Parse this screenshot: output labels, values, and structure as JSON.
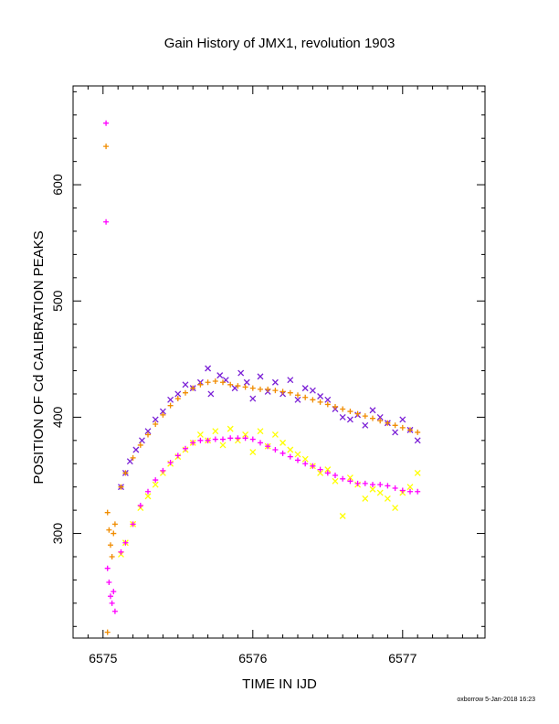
{
  "chart_data": {
    "type": "scatter",
    "title": "Gain History of JMX1, revolution 1903",
    "xlabel": "TIME IN IJD",
    "ylabel": "POSITION OF Cd CALIBRATION PEAKS",
    "xlim": [
      6574.8,
      6577.55
    ],
    "ylim": [
      210,
      685
    ],
    "xticks": [
      6575,
      6576,
      6577
    ],
    "xtick_labels": [
      "6575",
      "6576",
      "6577"
    ],
    "yticks": [
      300,
      400,
      500,
      600
    ],
    "ytick_labels": [
      "300",
      "400",
      "500",
      "600"
    ],
    "grid": false,
    "legend": "none",
    "series": [
      {
        "marker": "x",
        "color": "#7a1fd6",
        "points": [
          [
            6575.12,
            340
          ],
          [
            6575.15,
            352
          ],
          [
            6575.18,
            362
          ],
          [
            6575.22,
            372
          ],
          [
            6575.26,
            380
          ],
          [
            6575.3,
            388
          ],
          [
            6575.35,
            398
          ],
          [
            6575.4,
            405
          ],
          [
            6575.45,
            415
          ],
          [
            6575.5,
            420
          ],
          [
            6575.55,
            428
          ],
          [
            6575.6,
            425
          ],
          [
            6575.65,
            430
          ],
          [
            6575.7,
            442
          ],
          [
            6575.72,
            420
          ],
          [
            6575.78,
            436
          ],
          [
            6575.82,
            432
          ],
          [
            6575.88,
            425
          ],
          [
            6575.92,
            438
          ],
          [
            6575.96,
            430
          ],
          [
            6576.0,
            416
          ],
          [
            6576.05,
            435
          ],
          [
            6576.1,
            422
          ],
          [
            6576.15,
            430
          ],
          [
            6576.2,
            420
          ],
          [
            6576.25,
            432
          ],
          [
            6576.3,
            415
          ],
          [
            6576.35,
            425
          ],
          [
            6576.4,
            423
          ],
          [
            6576.45,
            418
          ],
          [
            6576.5,
            415
          ],
          [
            6576.55,
            407
          ],
          [
            6576.6,
            400
          ],
          [
            6576.65,
            398
          ],
          [
            6576.7,
            402
          ],
          [
            6576.75,
            393
          ],
          [
            6576.8,
            406
          ],
          [
            6576.85,
            400
          ],
          [
            6576.9,
            395
          ],
          [
            6576.95,
            387
          ],
          [
            6577.0,
            398
          ],
          [
            6577.05,
            389
          ],
          [
            6577.1,
            380
          ]
        ]
      },
      {
        "marker": "+",
        "color": "#f08c00",
        "points": [
          [
            6575.02,
            633
          ],
          [
            6575.03,
            318
          ],
          [
            6575.04,
            303
          ],
          [
            6575.05,
            290
          ],
          [
            6575.06,
            280
          ],
          [
            6575.07,
            300
          ],
          [
            6575.08,
            308
          ],
          [
            6575.03,
            215
          ],
          [
            6575.12,
            340
          ],
          [
            6575.15,
            352
          ],
          [
            6575.2,
            365
          ],
          [
            6575.25,
            376
          ],
          [
            6575.3,
            385
          ],
          [
            6575.35,
            394
          ],
          [
            6575.4,
            402
          ],
          [
            6575.45,
            410
          ],
          [
            6575.5,
            416
          ],
          [
            6575.55,
            421
          ],
          [
            6575.6,
            425
          ],
          [
            6575.65,
            428
          ],
          [
            6575.7,
            430
          ],
          [
            6575.75,
            431
          ],
          [
            6575.8,
            430
          ],
          [
            6575.85,
            428
          ],
          [
            6575.9,
            427
          ],
          [
            6575.95,
            426
          ],
          [
            6576.0,
            425
          ],
          [
            6576.05,
            424
          ],
          [
            6576.1,
            424
          ],
          [
            6576.15,
            423
          ],
          [
            6576.2,
            422
          ],
          [
            6576.25,
            421
          ],
          [
            6576.3,
            419
          ],
          [
            6576.35,
            417
          ],
          [
            6576.4,
            415
          ],
          [
            6576.45,
            413
          ],
          [
            6576.5,
            411
          ],
          [
            6576.55,
            409
          ],
          [
            6576.6,
            407
          ],
          [
            6576.65,
            405
          ],
          [
            6576.7,
            403
          ],
          [
            6576.75,
            401
          ],
          [
            6576.8,
            399
          ],
          [
            6576.85,
            397
          ],
          [
            6576.9,
            395
          ],
          [
            6576.95,
            393
          ],
          [
            6577.0,
            391
          ],
          [
            6577.05,
            389
          ],
          [
            6577.1,
            387
          ]
        ]
      },
      {
        "marker": "x",
        "color": "#ffff00",
        "points": [
          [
            6575.12,
            282
          ],
          [
            6575.15,
            292
          ],
          [
            6575.2,
            308
          ],
          [
            6575.25,
            322
          ],
          [
            6575.3,
            332
          ],
          [
            6575.35,
            342
          ],
          [
            6575.4,
            352
          ],
          [
            6575.45,
            360
          ],
          [
            6575.5,
            366
          ],
          [
            6575.55,
            372
          ],
          [
            6575.6,
            378
          ],
          [
            6575.65,
            385
          ],
          [
            6575.7,
            380
          ],
          [
            6575.75,
            388
          ],
          [
            6575.8,
            376
          ],
          [
            6575.85,
            390
          ],
          [
            6575.9,
            380
          ],
          [
            6575.95,
            385
          ],
          [
            6576.0,
            370
          ],
          [
            6576.05,
            388
          ],
          [
            6576.1,
            375
          ],
          [
            6576.15,
            385
          ],
          [
            6576.2,
            378
          ],
          [
            6576.25,
            372
          ],
          [
            6576.3,
            368
          ],
          [
            6576.35,
            364
          ],
          [
            6576.4,
            358
          ],
          [
            6576.45,
            352
          ],
          [
            6576.5,
            355
          ],
          [
            6576.55,
            345
          ],
          [
            6576.6,
            315
          ],
          [
            6576.65,
            348
          ],
          [
            6576.7,
            342
          ],
          [
            6576.75,
            330
          ],
          [
            6576.8,
            338
          ],
          [
            6576.85,
            335
          ],
          [
            6576.9,
            330
          ],
          [
            6576.95,
            322
          ],
          [
            6577.0,
            335
          ],
          [
            6577.05,
            340
          ],
          [
            6577.1,
            352
          ]
        ]
      },
      {
        "marker": "+",
        "color": "#ff00ff",
        "points": [
          [
            6575.02,
            653
          ],
          [
            6575.02,
            568
          ],
          [
            6575.03,
            270
          ],
          [
            6575.04,
            258
          ],
          [
            6575.05,
            246
          ],
          [
            6575.06,
            240
          ],
          [
            6575.07,
            250
          ],
          [
            6575.08,
            233
          ],
          [
            6575.12,
            284
          ],
          [
            6575.15,
            292
          ],
          [
            6575.2,
            308
          ],
          [
            6575.25,
            324
          ],
          [
            6575.3,
            336
          ],
          [
            6575.35,
            346
          ],
          [
            6575.4,
            354
          ],
          [
            6575.45,
            361
          ],
          [
            6575.5,
            367
          ],
          [
            6575.55,
            373
          ],
          [
            6575.6,
            378
          ],
          [
            6575.65,
            380
          ],
          [
            6575.7,
            380
          ],
          [
            6575.75,
            381
          ],
          [
            6575.8,
            381
          ],
          [
            6575.85,
            382
          ],
          [
            6575.9,
            382
          ],
          [
            6575.95,
            382
          ],
          [
            6576.0,
            381
          ],
          [
            6576.05,
            378
          ],
          [
            6576.1,
            375
          ],
          [
            6576.15,
            372
          ],
          [
            6576.2,
            369
          ],
          [
            6576.25,
            366
          ],
          [
            6576.3,
            363
          ],
          [
            6576.35,
            360
          ],
          [
            6576.4,
            358
          ],
          [
            6576.45,
            355
          ],
          [
            6576.5,
            352
          ],
          [
            6576.55,
            350
          ],
          [
            6576.6,
            347
          ],
          [
            6576.65,
            345
          ],
          [
            6576.7,
            343
          ],
          [
            6576.75,
            343
          ],
          [
            6576.8,
            342
          ],
          [
            6576.85,
            342
          ],
          [
            6576.9,
            341
          ],
          [
            6576.95,
            339
          ],
          [
            6577.0,
            337
          ],
          [
            6577.05,
            336
          ],
          [
            6577.1,
            336
          ]
        ]
      }
    ]
  },
  "footer": {
    "credit": "oxborrow  5-Jan-2018 16:23"
  }
}
